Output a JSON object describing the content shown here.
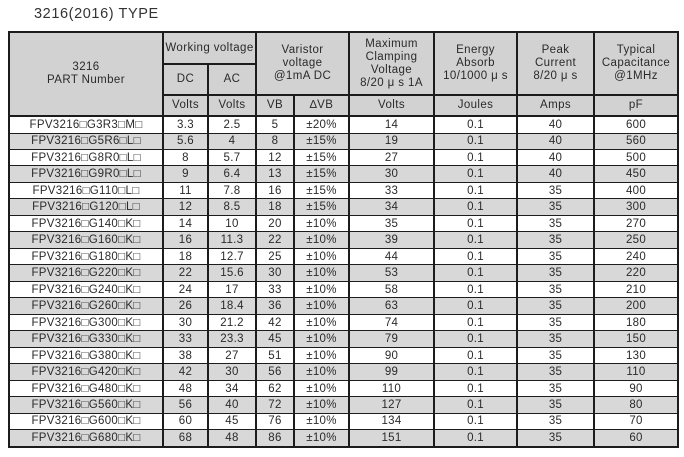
{
  "page": {
    "title": "3216(2016) TYPE"
  },
  "colors": {
    "header_bg": "#d2d2d2",
    "row_stripe_bg": "#d8d8d8",
    "border": "#1c1c1c",
    "text": "#2a2a2a"
  },
  "table": {
    "header": {
      "part_number": "3216\nPART Number",
      "working_voltage": "Working voltage",
      "dc": "DC",
      "ac": "AC",
      "varistor_voltage": "Varistor\nvoltage\n@1mA DC",
      "max_clamping": "Maximum\nClamping\nVoltage\n8/20 μ s 1A",
      "energy_absorb": "Energy\nAbsorb\n10/1000 μ s",
      "peak_current": "Peak\nCurrent\n8/20 μ s",
      "typical_capacitance": "Typical\nCapacitance\n@1MHz",
      "units": {
        "dc": "Volts",
        "ac": "Volts",
        "vb": "VB",
        "delta_vb": "∆VB",
        "clamping": "Volts",
        "energy": "Joules",
        "peak": "Amps",
        "capacitance": "pF"
      }
    },
    "rows": [
      [
        "FPV3216□G3R3□M□",
        "3.3",
        "2.5",
        "5",
        "±20%",
        "14",
        "0.1",
        "40",
        "600"
      ],
      [
        "FPV3216□G5R6□L□",
        "5.6",
        "4",
        "8",
        "±15%",
        "19",
        "0.1",
        "40",
        "560"
      ],
      [
        "FPV3216□G8R0□L□",
        "8",
        "5.7",
        "12",
        "±15%",
        "27",
        "0.1",
        "40",
        "500"
      ],
      [
        "FPV3216□G9R0□L□",
        "9",
        "6.4",
        "13",
        "±15%",
        "30",
        "0.1",
        "40",
        "450"
      ],
      [
        "FPV3216□G110□L□",
        "11",
        "7.8",
        "16",
        "±15%",
        "33",
        "0.1",
        "35",
        "400"
      ],
      [
        "FPV3216□G120□L□",
        "12",
        "8.5",
        "18",
        "±15%",
        "34",
        "0.1",
        "35",
        "300"
      ],
      [
        "FPV3216□G140□K□",
        "14",
        "10",
        "20",
        "±10%",
        "35",
        "0.1",
        "35",
        "270"
      ],
      [
        "FPV3216□G160□K□",
        "16",
        "11.3",
        "22",
        "±10%",
        "39",
        "0.1",
        "35",
        "250"
      ],
      [
        "FPV3216□G180□K□",
        "18",
        "12.7",
        "25",
        "±10%",
        "44",
        "0.1",
        "35",
        "240"
      ],
      [
        "FPV3216□G220□K□",
        "22",
        "15.6",
        "30",
        "±10%",
        "53",
        "0.1",
        "35",
        "220"
      ],
      [
        "FPV3216□G240□K□",
        "24",
        "17",
        "33",
        "±10%",
        "58",
        "0.1",
        "35",
        "210"
      ],
      [
        "FPV3216□G260□K□",
        "26",
        "18.4",
        "36",
        "±10%",
        "63",
        "0.1",
        "35",
        "200"
      ],
      [
        "FPV3216□G300□K□",
        "30",
        "21.2",
        "42",
        "±10%",
        "74",
        "0.1",
        "35",
        "180"
      ],
      [
        "FPV3216□G330□K□",
        "33",
        "23.3",
        "45",
        "±10%",
        "79",
        "0.1",
        "35",
        "150"
      ],
      [
        "FPV3216□G380□K□",
        "38",
        "27",
        "51",
        "±10%",
        "90",
        "0.1",
        "35",
        "130"
      ],
      [
        "FPV3216□G420□K□",
        "42",
        "30",
        "56",
        "±10%",
        "99",
        "0.1",
        "35",
        "110"
      ],
      [
        "FPV3216□G480□K□",
        "48",
        "34",
        "62",
        "±10%",
        "110",
        "0.1",
        "35",
        "90"
      ],
      [
        "FPV3216□G560□K□",
        "56",
        "40",
        "72",
        "±10%",
        "127",
        "0.1",
        "35",
        "80"
      ],
      [
        "FPV3216□G600□K□",
        "60",
        "45",
        "76",
        "±10%",
        "134",
        "0.1",
        "35",
        "70"
      ],
      [
        "FPV3216□G680□K□",
        "68",
        "48",
        "86",
        "±10%",
        "151",
        "0.1",
        "35",
        "60"
      ]
    ]
  }
}
